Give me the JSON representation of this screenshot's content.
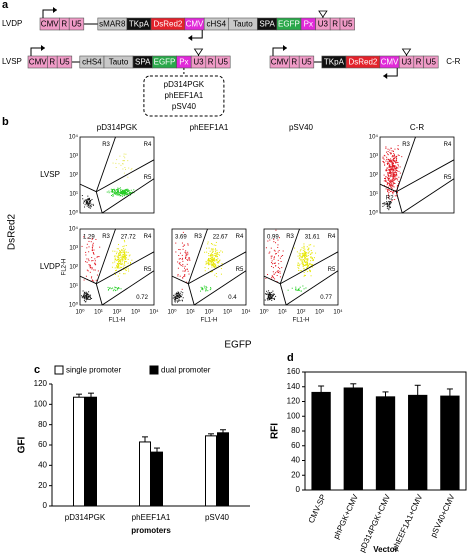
{
  "panel_a": {
    "label": "a",
    "lvdp": {
      "label": "LVDP",
      "elements": [
        {
          "text": "CMV",
          "color": "#ef9ac6"
        },
        {
          "text": "R",
          "color": "#ef9ac6"
        },
        {
          "text": "U5",
          "color": "#ef9ac6"
        },
        {
          "text": "sMAR8",
          "color": "#c8c8c8"
        },
        {
          "text": "TKpA",
          "color": "#111111"
        },
        {
          "text": "DsRed2",
          "color": "#e3222b"
        },
        {
          "text": "CMV",
          "color": "#e12ad9"
        },
        {
          "text": "cHS4",
          "color": "#c8c8c8"
        },
        {
          "text": "Tauto",
          "color": "#c8c8c8"
        },
        {
          "text": "SPA",
          "color": "#111111"
        },
        {
          "text": "EGFP",
          "color": "#2aa84a"
        },
        {
          "text": "Px",
          "color": "#e12ad9"
        },
        {
          "text": "U3",
          "color": "#ef9ac6"
        },
        {
          "text": "R",
          "color": "#ef9ac6"
        },
        {
          "text": "U5",
          "color": "#ef9ac6"
        }
      ]
    },
    "lvsp": {
      "label": "LVSP",
      "elements": [
        {
          "text": "CMV",
          "color": "#ef9ac6"
        },
        {
          "text": "R",
          "color": "#ef9ac6"
        },
        {
          "text": "U5",
          "color": "#ef9ac6"
        },
        {
          "text": "cHS4",
          "color": "#c8c8c8"
        },
        {
          "text": "Tauto",
          "color": "#c8c8c8"
        },
        {
          "text": "SPA",
          "color": "#111111"
        },
        {
          "text": "EGFP",
          "color": "#2aa84a"
        },
        {
          "text": "Px",
          "color": "#e12ad9"
        },
        {
          "text": "U3",
          "color": "#ef9ac6"
        },
        {
          "text": "R",
          "color": "#ef9ac6"
        },
        {
          "text": "U5",
          "color": "#ef9ac6"
        }
      ]
    },
    "cr": {
      "label": "C-R",
      "elements": [
        {
          "text": "CMV",
          "color": "#ef9ac6"
        },
        {
          "text": "R",
          "color": "#ef9ac6"
        },
        {
          "text": "U5",
          "color": "#ef9ac6"
        },
        {
          "text": "TKpA",
          "color": "#111111"
        },
        {
          "text": "DsRed2",
          "color": "#e3222b"
        },
        {
          "text": "CMV",
          "color": "#e12ad9"
        },
        {
          "text": "U3",
          "color": "#ef9ac6"
        },
        {
          "text": "R",
          "color": "#ef9ac6"
        },
        {
          "text": "U5",
          "color": "#ef9ac6"
        }
      ]
    },
    "promoters": [
      "pD314PGK",
      "phEEF1A1",
      "pSV40"
    ]
  },
  "panel_b": {
    "label": "b",
    "columns": [
      "pD314PGK",
      "phEEF1A1",
      "pSV40",
      "C-R"
    ],
    "rows": [
      "LVSP",
      "LVDP"
    ],
    "y_axis_label": "DsRed2",
    "x_axis_label": "EGFP",
    "plot_y_label": "FL2-H",
    "plot_x_label": "FL1-H",
    "ticks": [
      "10⁰",
      "10¹",
      "10²",
      "10³",
      "10⁴"
    ],
    "regions": [
      "R2",
      "R3",
      "R4",
      "R5"
    ],
    "lvdp_percentages": [
      [
        1.29,
        27.72,
        0.72
      ],
      [
        3.69,
        22.67,
        0.4
      ],
      [
        0.99,
        31.61,
        0.77
      ]
    ]
  },
  "chart_data": [
    {
      "type": "bar",
      "label": "c",
      "y_label": "GFI",
      "x_label": "promoters",
      "categories": [
        "pD314PGK",
        "phEEF1A1",
        "pSV40"
      ],
      "series": [
        {
          "name": "single promoter",
          "color": "#ffffff",
          "values": [
            107,
            63,
            69
          ],
          "errors": [
            3,
            5,
            2
          ]
        },
        {
          "name": "dual promoter",
          "color": "#000000",
          "values": [
            107,
            53,
            72
          ],
          "errors": [
            4,
            4,
            3
          ]
        }
      ],
      "ylim": [
        0,
        120
      ],
      "yticks": [
        0,
        20,
        40,
        60,
        80,
        100,
        120
      ]
    },
    {
      "type": "bar",
      "label": "d",
      "y_label": "RFI",
      "x_label": "Vector",
      "categories": [
        "CMV-SP",
        "phPGK+CMV",
        "pD314PGK+CMV",
        "phEEF1A1+CMV",
        "pSV40+CMV"
      ],
      "values": [
        133,
        139,
        127,
        129,
        128
      ],
      "errors": [
        8,
        5,
        6,
        13,
        9
      ],
      "color": "#000000",
      "ylim": [
        0,
        160
      ],
      "yticks": [
        0,
        20,
        40,
        60,
        80,
        100,
        120,
        140,
        160
      ]
    }
  ]
}
